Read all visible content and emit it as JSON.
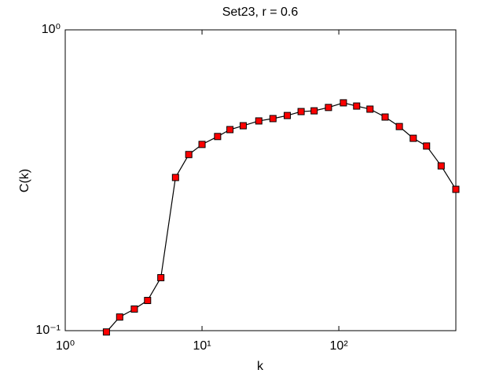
{
  "chart_data": {
    "type": "line",
    "title": "Set23, r = 0.6",
    "x_label": "k",
    "y_label": "C(k)",
    "x": [
      2,
      2.5,
      3.2,
      4,
      5,
      6.4,
      8,
      10,
      13,
      16,
      20,
      26,
      33,
      42,
      53,
      66,
      84,
      108,
      135,
      169,
      218,
      277,
      350,
      438,
      560,
      717
    ],
    "series": [
      {
        "color": "#ff0000",
        "line_color": "#000000",
        "values": [
          0.099,
          0.111,
          0.118,
          0.126,
          0.15,
          0.323,
          0.385,
          0.416,
          0.442,
          0.466,
          0.48,
          0.498,
          0.507,
          0.519,
          0.535,
          0.538,
          0.552,
          0.572,
          0.558,
          0.545,
          0.513,
          0.477,
          0.436,
          0.411,
          0.353,
          0.295
        ]
      }
    ],
    "x_log": true,
    "y_log": true,
    "xlim": [
      1,
      717
    ],
    "ylim": [
      0.1,
      1
    ],
    "xticks": [
      {
        "value": 1,
        "label": "10⁰"
      },
      {
        "value": 10,
        "label": "10¹"
      },
      {
        "value": 100,
        "label": "10²"
      }
    ],
    "yticks": [
      {
        "value": 0.1,
        "label": "10⁻¹"
      },
      {
        "value": 1,
        "label": "10⁰"
      }
    ]
  }
}
